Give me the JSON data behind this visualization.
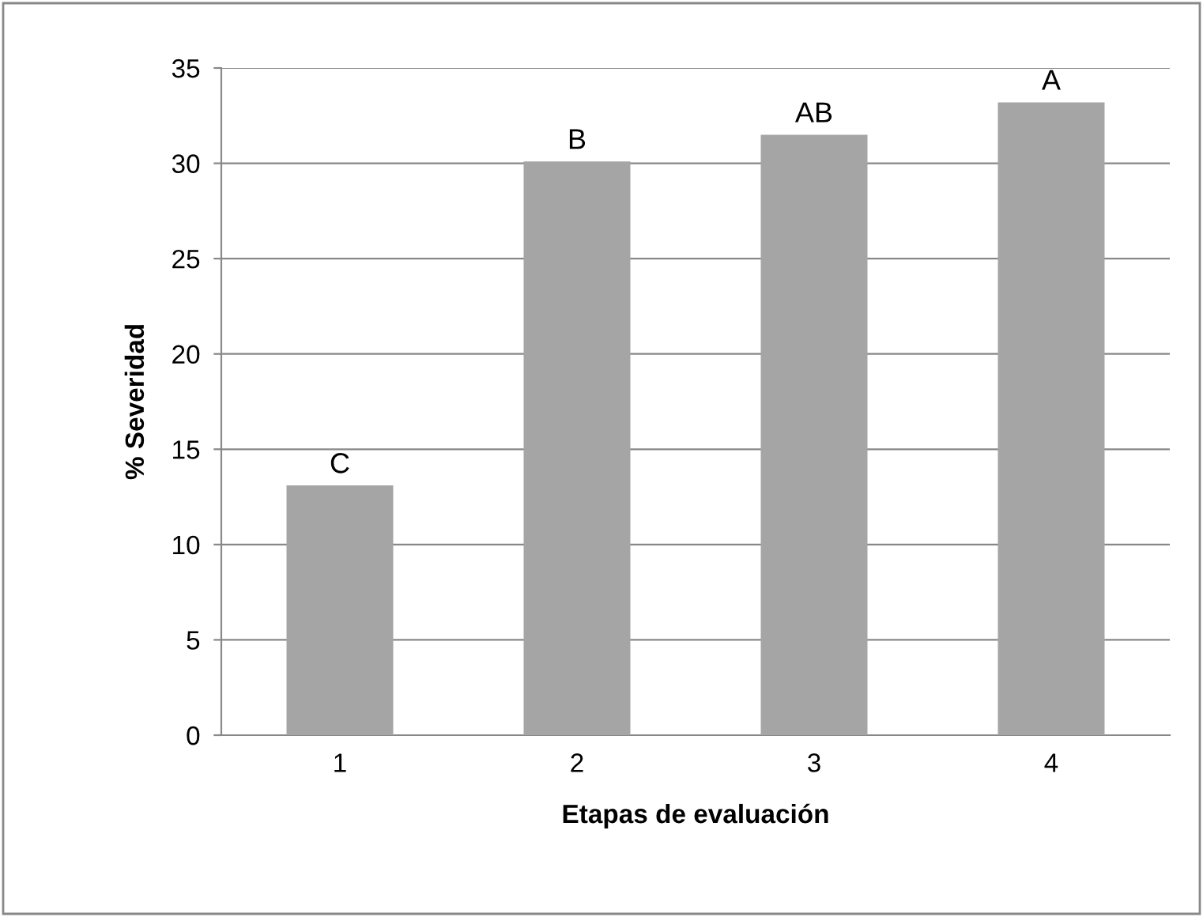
{
  "chart_data": {
    "type": "bar",
    "xlabel": "Etapas de evaluación",
    "ylabel": "% Severidad",
    "categories": [
      "1",
      "2",
      "3",
      "4"
    ],
    "values": [
      13.1,
      30.1,
      31.5,
      33.2
    ],
    "color": "#a5a5a5",
    "ylim": [
      0,
      35
    ],
    "yticks": [
      0,
      5,
      10,
      15,
      20,
      25,
      30,
      35
    ],
    "grid": "y",
    "annotations": [
      {
        "text": "C",
        "x": "1",
        "y": 13.1
      },
      {
        "text": "B",
        "x": "2",
        "y": 30.1
      },
      {
        "text": "AB",
        "x": "3",
        "y": 31.5
      },
      {
        "text": "A",
        "x": "4",
        "y": 33.2
      }
    ]
  }
}
